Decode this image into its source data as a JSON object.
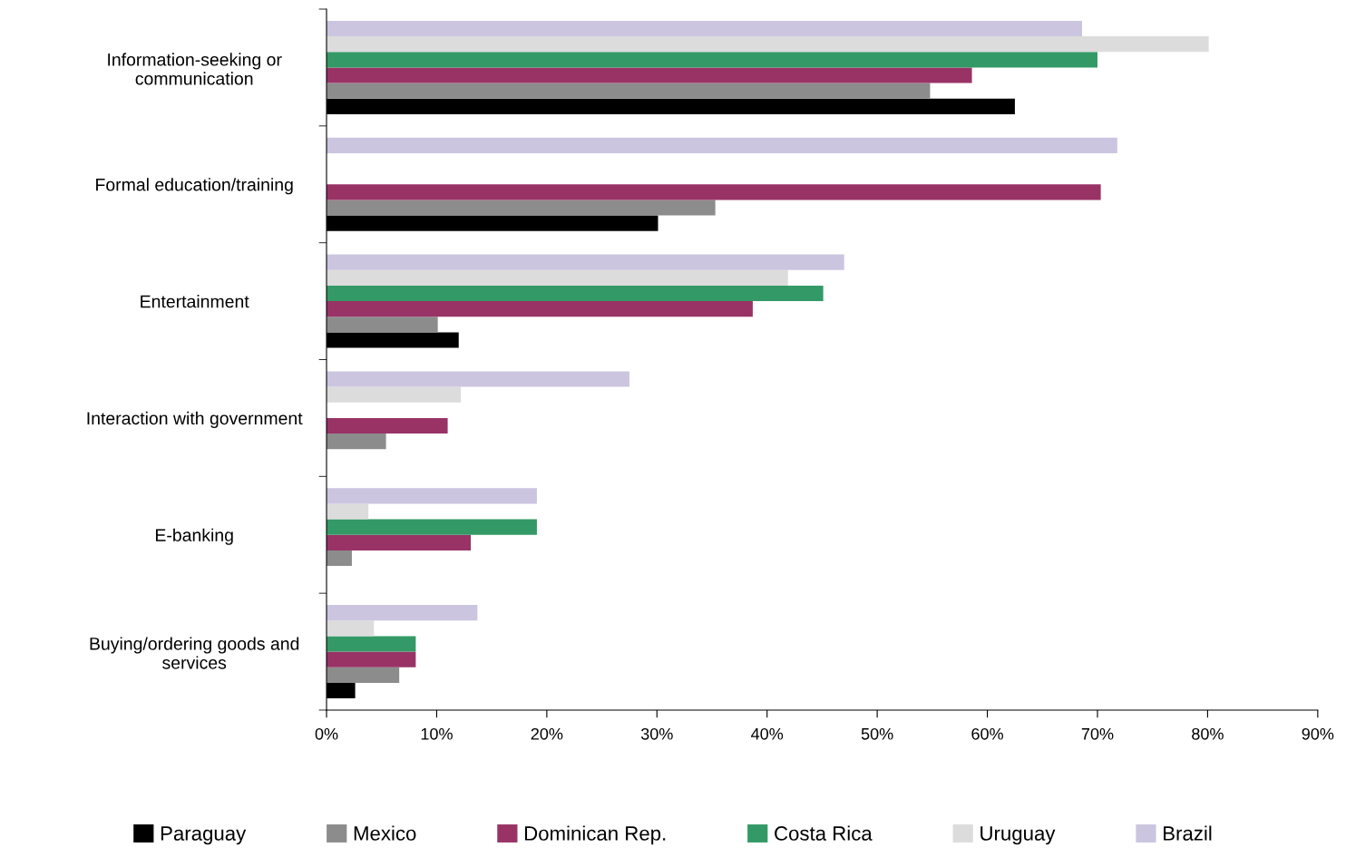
{
  "chart_data": {
    "type": "bar",
    "orientation": "horizontal",
    "categories": [
      "Information-seeking or\ncommunication",
      "Formal education/training",
      "Entertainment",
      "Interaction with government",
      "E-banking",
      "Buying/ordering goods and\nservices"
    ],
    "series": [
      {
        "name": "Paraguay",
        "color": "#000000",
        "values": [
          62.5,
          30.1,
          12.0,
          null,
          null,
          2.6
        ]
      },
      {
        "name": "Mexico",
        "color": "#8c8c8c",
        "values": [
          54.8,
          35.3,
          10.1,
          5.4,
          2.3,
          6.6
        ]
      },
      {
        "name": "Dominican Rep.",
        "color": "#993366",
        "values": [
          58.6,
          70.3,
          38.7,
          11.0,
          13.1,
          8.1
        ]
      },
      {
        "name": "Costa Rica",
        "color": "#339966",
        "values": [
          70.0,
          null,
          45.1,
          null,
          19.1,
          8.1
        ]
      },
      {
        "name": "Uruguay",
        "color": "#dcdcdc",
        "values": [
          80.1,
          null,
          41.9,
          12.2,
          3.8,
          4.3
        ]
      },
      {
        "name": "Brazil",
        "color": "#ccc5e0",
        "values": [
          68.6,
          71.8,
          47.0,
          27.5,
          19.1,
          13.7
        ]
      }
    ],
    "xlim": [
      0,
      90
    ],
    "xticks": [
      {
        "value": 0,
        "label": "0%"
      },
      {
        "value": 10,
        "label": "10%"
      },
      {
        "value": 20,
        "label": "20%"
      },
      {
        "value": 30,
        "label": "30%"
      },
      {
        "value": 40,
        "label": "40%"
      },
      {
        "value": 50,
        "label": "50%"
      },
      {
        "value": 60,
        "label": "60%"
      },
      {
        "value": 70,
        "label": "70%"
      },
      {
        "value": 80,
        "label": "80%"
      },
      {
        "value": 90,
        "label": "90%"
      }
    ],
    "grid": false,
    "legend": "bottom"
  }
}
